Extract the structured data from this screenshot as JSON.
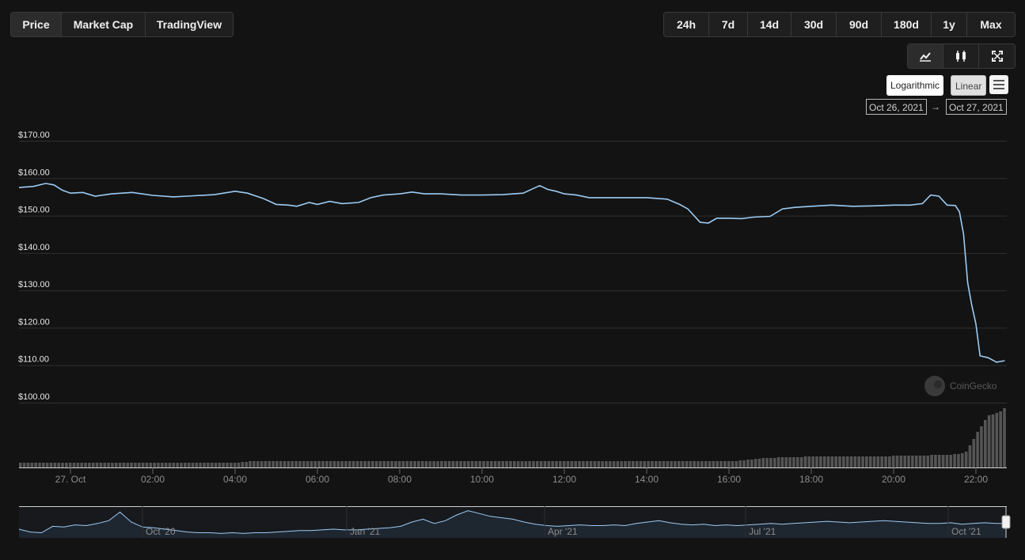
{
  "view_tabs": [
    "Price",
    "Market Cap",
    "TradingView"
  ],
  "range_tabs": [
    "24h",
    "7d",
    "14d",
    "30d",
    "90d",
    "180d",
    "1y",
    "Max"
  ],
  "chart_type_icons": [
    "line-chart-icon",
    "candlestick-icon",
    "fullscreen-icon"
  ],
  "scale": {
    "log_label": "Logarithmic",
    "linear_label": "Linear"
  },
  "date_range": {
    "from": "Oct 26, 2021",
    "arrow": "→",
    "to": "Oct 27, 2021"
  },
  "credit": "CoinGecko",
  "colors": {
    "background": "#131313",
    "line": "#9ccbf3",
    "volume": "#555555",
    "grid": "#2e2e2e"
  },
  "chart_data": {
    "type": "line",
    "y_ticks": [
      "$170.00",
      "$160.00",
      "$150.00",
      "$140.00",
      "$130.00",
      "$120.00",
      "$110.00",
      "$100.00"
    ],
    "ylim": [
      100,
      170
    ],
    "x_ticks": [
      "27. Oct",
      "02:00",
      "04:00",
      "06:00",
      "08:00",
      "10:00",
      "12:00",
      "14:00",
      "16:00",
      "18:00",
      "20:00",
      "22:00"
    ],
    "x_hours": [
      0,
      2,
      4,
      6,
      8,
      10,
      12,
      14,
      16,
      18,
      20,
      22
    ],
    "xlim": [
      -1.25,
      22.75
    ],
    "series": [
      {
        "x": [
          -1.25,
          -0.9,
          -0.6,
          -0.4,
          -0.2,
          0,
          0.3,
          0.6,
          1,
          1.5,
          2,
          2.5,
          3,
          3.5,
          4,
          4.3,
          4.7,
          5,
          5.3,
          5.5,
          5.8,
          6,
          6.3,
          6.6,
          7,
          7.3,
          7.6,
          8,
          8.3,
          8.6,
          9,
          9.5,
          10,
          10.5,
          11,
          11.4,
          11.6,
          11.8,
          12,
          12.3,
          12.6,
          13,
          13.5,
          14,
          14.5,
          14.8,
          15,
          15.3,
          15.5,
          15.7,
          16,
          16.3,
          16.6,
          17,
          17.3,
          17.6,
          18,
          18.5,
          19,
          19.5,
          20,
          20.4,
          20.7,
          20.9,
          21.1,
          21.3,
          21.5,
          21.6,
          21.7,
          21.8,
          21.9,
          22.0,
          22.1,
          22.3,
          22.5,
          22.7
        ],
        "y": [
          157.5,
          157.8,
          158.6,
          158.2,
          156.8,
          156.0,
          156.2,
          155.2,
          155.8,
          156.2,
          155.4,
          155.0,
          155.3,
          155.6,
          156.5,
          156.0,
          154.5,
          153.0,
          152.8,
          152.5,
          153.5,
          153.0,
          153.8,
          153.2,
          153.5,
          154.8,
          155.5,
          155.8,
          156.3,
          155.8,
          155.8,
          155.5,
          155.5,
          155.6,
          156.0,
          158.0,
          157.0,
          156.5,
          155.8,
          155.5,
          154.8,
          154.8,
          154.8,
          154.8,
          154.4,
          153.0,
          151.8,
          148.2,
          148.0,
          149.3,
          149.3,
          149.2,
          149.6,
          149.8,
          151.8,
          152.2,
          152.5,
          152.8,
          152.5,
          152.6,
          152.8,
          152.8,
          153.2,
          155.5,
          155.2,
          152.8,
          152.7,
          151.0,
          145.0,
          132.0,
          126.0,
          121.0,
          112.5,
          112.0,
          110.8,
          111.2
        ]
      }
    ],
    "volume_bars": [
      6,
      6,
      6,
      6,
      6,
      6,
      6,
      6,
      6,
      6,
      6,
      6,
      6,
      6,
      6,
      6,
      6,
      6,
      6,
      6,
      6,
      6,
      6,
      6,
      6,
      6,
      6,
      6,
      6,
      6,
      6,
      6,
      6,
      6,
      6,
      6,
      6,
      6,
      6,
      6,
      6,
      6,
      6,
      6,
      6,
      6,
      6,
      6,
      6,
      6,
      6,
      6,
      6,
      6,
      6,
      6,
      6,
      6,
      7,
      7,
      8,
      8,
      8,
      8,
      8,
      8,
      8,
      8,
      8,
      8,
      8,
      8,
      8,
      8,
      8,
      8,
      8,
      8,
      8,
      8,
      8,
      8,
      8,
      8,
      8,
      8,
      8,
      8,
      8,
      8,
      8,
      8,
      8,
      8,
      8,
      8,
      8,
      8,
      8,
      8,
      8,
      8,
      8,
      8,
      8,
      8,
      8,
      8,
      8,
      8,
      8,
      8,
      8,
      8,
      8,
      8,
      8,
      8,
      8,
      8,
      8,
      8,
      8,
      8,
      8,
      8,
      8,
      8,
      8,
      8,
      8,
      8,
      8,
      8,
      8,
      8,
      8,
      8,
      8,
      8,
      8,
      8,
      8,
      8,
      8,
      8,
      8,
      8,
      8,
      8,
      8,
      8,
      8,
      8,
      8,
      8,
      8,
      8,
      8,
      8,
      8,
      8,
      8,
      8,
      8,
      8,
      8,
      8,
      8,
      8,
      8,
      8,
      8,
      8,
      8,
      8,
      8,
      8,
      8,
      8,
      8,
      8,
      8,
      8,
      8,
      8,
      8,
      8,
      9,
      9,
      10,
      10,
      11,
      11,
      12,
      12,
      12,
      12,
      13,
      13,
      13,
      13,
      13,
      13,
      13,
      14,
      14,
      14,
      14,
      14,
      14,
      14,
      14,
      14,
      14,
      14,
      14,
      14,
      14,
      14,
      14,
      14,
      14,
      14,
      14,
      14,
      14,
      14,
      15,
      15,
      15,
      15,
      15,
      15,
      15,
      15,
      15,
      15,
      16,
      16,
      16,
      16,
      16,
      16,
      17,
      17,
      18,
      20,
      28,
      36,
      45,
      52,
      60,
      66,
      67,
      69,
      71,
      75
    ],
    "navigator": {
      "x_labels": [
        "Oct '20",
        "Jan '21",
        "Apr '21",
        "Jul '21",
        "Oct '21"
      ],
      "values": [
        10,
        6,
        5,
        14,
        13,
        16,
        15,
        18,
        22,
        34,
        20,
        13,
        12,
        10,
        8,
        6,
        5,
        5,
        4,
        5,
        4,
        5,
        5,
        6,
        7,
        8,
        8,
        9,
        10,
        9,
        9,
        10,
        11,
        12,
        14,
        20,
        24,
        18,
        22,
        30,
        36,
        32,
        28,
        26,
        24,
        20,
        17,
        15,
        14,
        15,
        16,
        15,
        15,
        16,
        15,
        18,
        20,
        22,
        19,
        17,
        16,
        17,
        15,
        16,
        15,
        16,
        17,
        18,
        17,
        18,
        19,
        20,
        21,
        20,
        19,
        20,
        21,
        22,
        21,
        20,
        19,
        18,
        18,
        19,
        17,
        18,
        19,
        18,
        18
      ]
    }
  }
}
